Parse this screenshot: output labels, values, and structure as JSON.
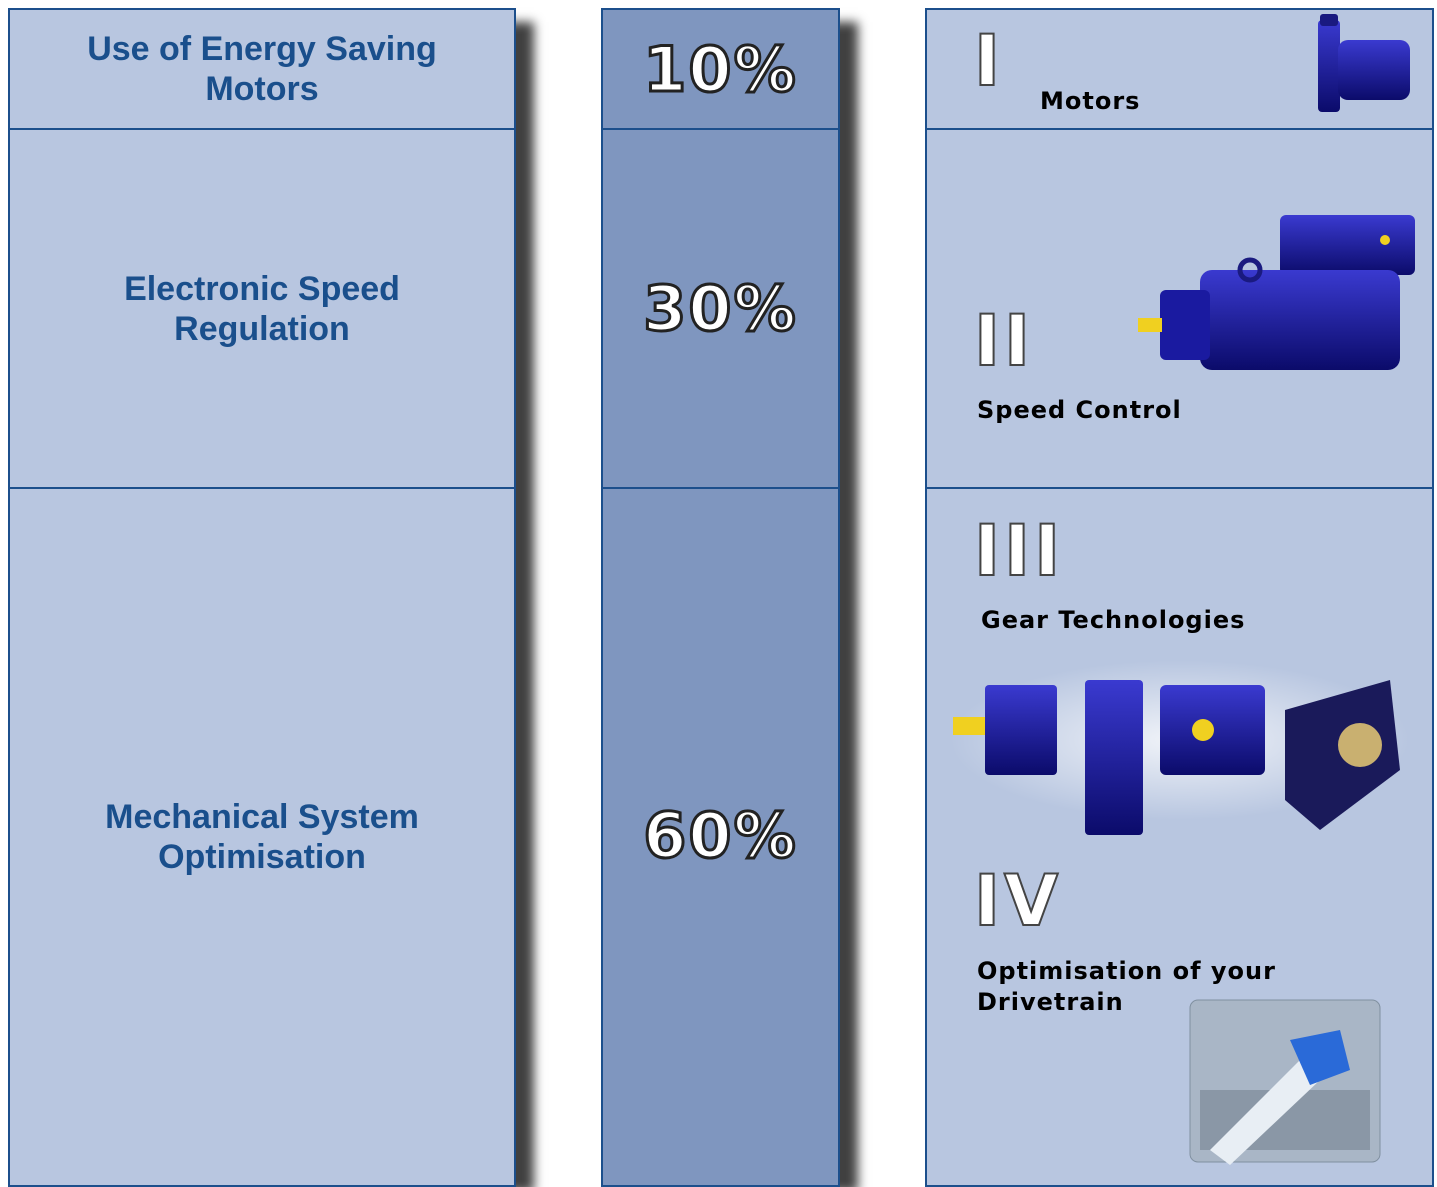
{
  "left_column": [
    "Use of Energy Saving Motors",
    "Electronic Speed Regulation",
    "Mechanical System Optimisation"
  ],
  "middle_column": [
    "10%",
    "30%",
    "60%"
  ],
  "right_column": [
    {
      "numeral": "I",
      "label": "Motors"
    },
    {
      "numeral": "II",
      "label": "Speed Control"
    },
    {
      "numeral": "III",
      "label": "Gear Technologies"
    },
    {
      "numeral": "IV",
      "label": "Optimisation of your Drivetrain"
    }
  ]
}
